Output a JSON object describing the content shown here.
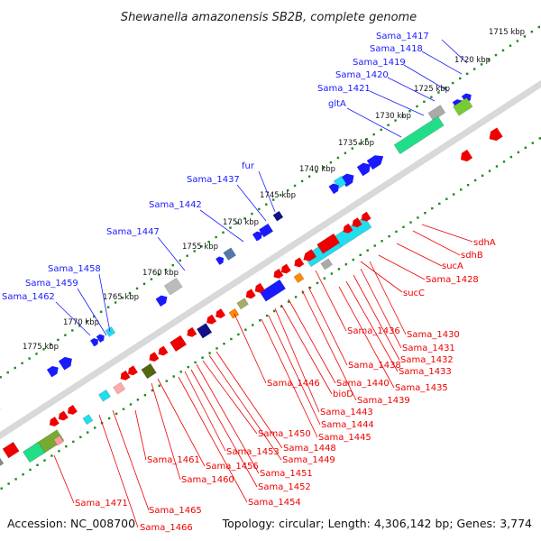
{
  "title": "Shewanella amazonensis SB2B, complete genome",
  "footer": {
    "accession": "Accession: NC_008700",
    "summary": "Topology: circular; Length: 4,306,142 bp; Genes: 3,774"
  },
  "colors": {
    "forward_strand_label": "#1a1aff",
    "reverse_strand_label": "#ee0000",
    "tick_dots": "#1a8a1a",
    "backbone": "#8a8a8a"
  },
  "ticks": [
    "1715 kbp",
    "1720 kbp",
    "1725 kbp",
    "1730 kbp",
    "1735 kbp",
    "1740 kbp",
    "1745 kbp",
    "1750 kbp",
    "1755 kbp",
    "1760 kbp",
    "1765 kbp",
    "1770 kbp",
    "1775 kbp"
  ],
  "forward_labels": [
    "Sama_1417",
    "Sama_1418",
    "Sama_1419",
    "Sama_1420",
    "Sama_1421",
    "gltA",
    "fur",
    "Sama_1437",
    "Sama_1442",
    "Sama_1447",
    "Sama_1458",
    "Sama_1459",
    "Sama_1462"
  ],
  "reverse_labels": [
    "sdhA",
    "sdhB",
    "sucA",
    "Sama_1428",
    "sucC",
    "Sama_1430",
    "Sama_1431",
    "Sama_1432",
    "Sama_1433",
    "Sama_1435",
    "Sama_1436",
    "Sama_1438",
    "Sama_1439",
    "Sama_1440",
    "bioD",
    "Sama_1443",
    "Sama_1444",
    "Sama_1445",
    "Sama_1446",
    "Sama_1448",
    "Sama_1449",
    "Sama_1450",
    "Sama_1451",
    "Sama_1452",
    "Sama_1453",
    "Sama_1454",
    "Sama_1456",
    "Sama_1460",
    "Sama_1461",
    "Sama_1465",
    "Sama_1466",
    "Sama_1471"
  ]
}
